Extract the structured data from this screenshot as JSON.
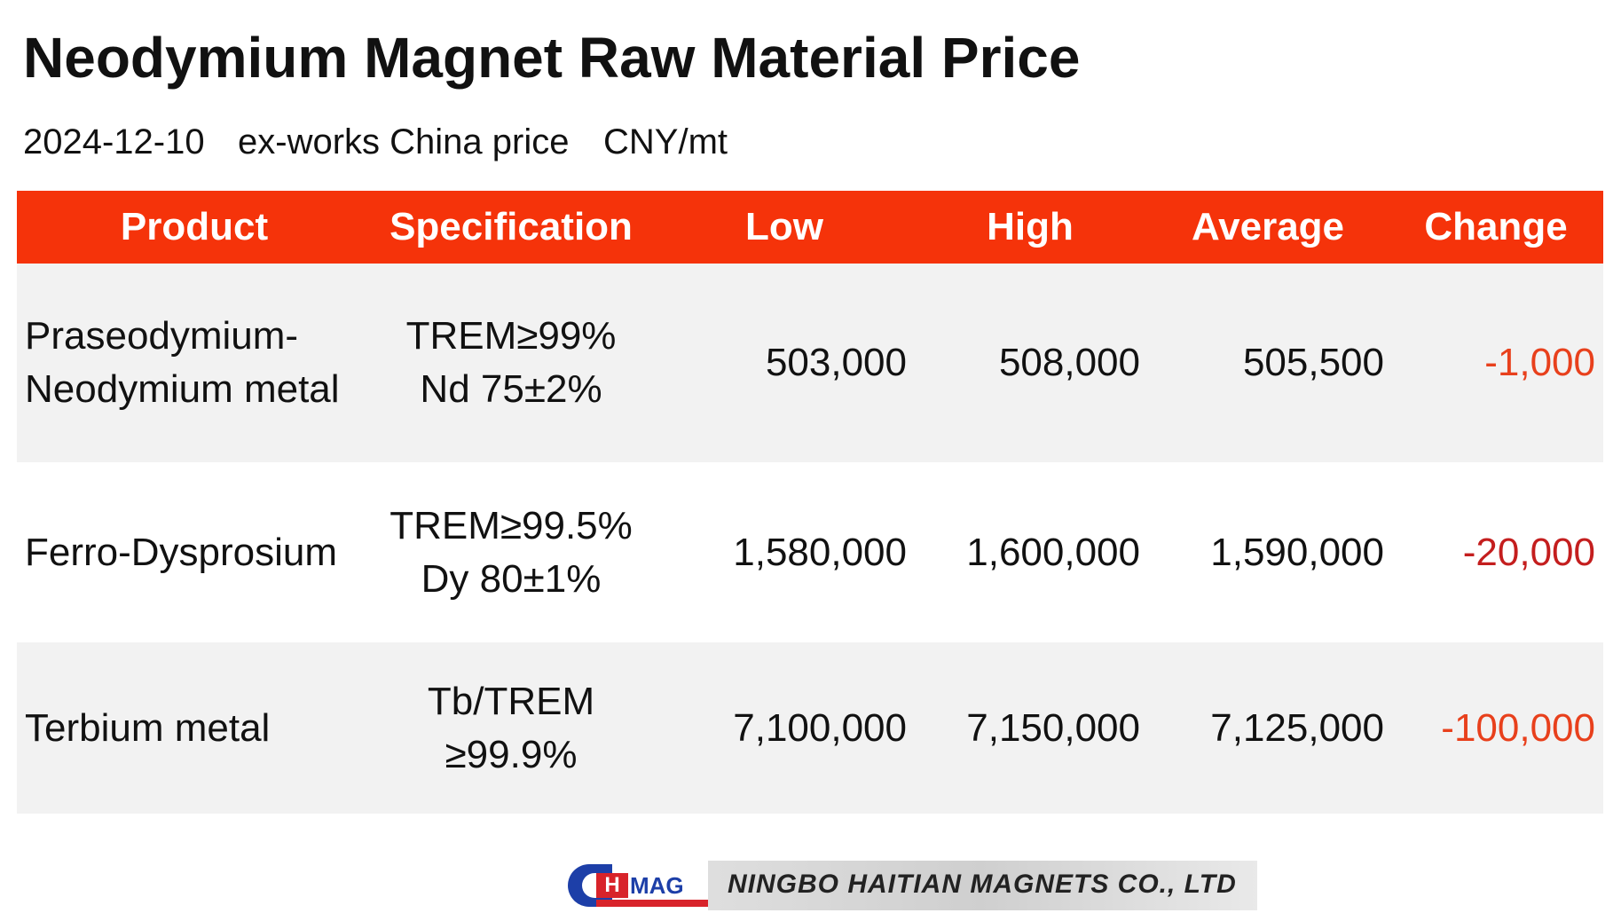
{
  "header": {
    "title": "Neodymium Magnet Raw Material Price",
    "date": "2024-12-10",
    "basis": "ex-works China price",
    "unit": "CNY/mt"
  },
  "table": {
    "columns": [
      "Product",
      "Specification",
      "Low",
      "High",
      "Average",
      "Change"
    ],
    "rows": [
      [
        [
          "Praseodymium-",
          "Neodymium metal"
        ],
        [
          "TREM≥99%",
          "Nd 75±2%"
        ],
        [
          "503,000"
        ],
        [
          "508,000"
        ],
        [
          "505,500"
        ],
        [
          "-1,000"
        ]
      ],
      [
        [
          "Ferro-Dysprosium"
        ],
        [
          "TREM≥99.5%",
          "Dy 80±1%"
        ],
        [
          "1,580,000"
        ],
        [
          "1,600,000"
        ],
        [
          "1,590,000"
        ],
        [
          "-20,000"
        ]
      ],
      [
        [
          "Terbium metal"
        ],
        [
          "Tb/TREM",
          "≥99.9%"
        ],
        [
          "7,100,000"
        ],
        [
          "7,150,000"
        ],
        [
          "7,125,000"
        ],
        [
          "-100,000"
        ]
      ]
    ]
  },
  "logo": {
    "mark_h": "H",
    "mark_mag": "MAG",
    "company": "NINGBO HAITIAN MAGNETS CO., LTD"
  }
}
